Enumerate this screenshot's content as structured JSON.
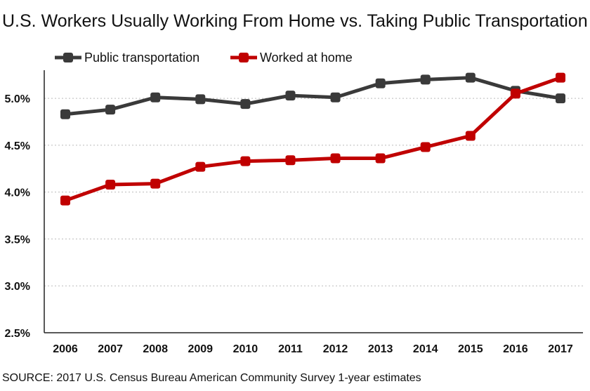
{
  "chart_data": {
    "type": "line",
    "title": "U.S. Workers Usually Working From Home vs. Taking Public Transportation",
    "x": [
      "2006",
      "2007",
      "2008",
      "2009",
      "2010",
      "2011",
      "2012",
      "2013",
      "2014",
      "2015",
      "2016",
      "2017"
    ],
    "series": [
      {
        "name": "Public transportation",
        "color": "#3a3a3a",
        "values": [
          4.83,
          4.88,
          5.01,
          4.99,
          4.94,
          5.03,
          5.01,
          5.16,
          5.2,
          5.22,
          5.08,
          5.0
        ]
      },
      {
        "name": "Worked at home",
        "color": "#c00000",
        "values": [
          3.91,
          4.08,
          4.09,
          4.27,
          4.33,
          4.34,
          4.36,
          4.36,
          4.48,
          4.6,
          5.05,
          5.22
        ]
      }
    ],
    "ylim": [
      2.5,
      5.3
    ],
    "yticks": [
      2.5,
      3.0,
      3.5,
      4.0,
      4.5,
      5.0
    ],
    "ytick_labels": [
      "2.5%",
      "3.0%",
      "3.5%",
      "4.0%",
      "4.5%",
      "5.0%"
    ],
    "grid": true,
    "legend": "top-left",
    "source": "SOURCE: 2017 U.S. Census Bureau American Community Survey 1-year estimates"
  }
}
